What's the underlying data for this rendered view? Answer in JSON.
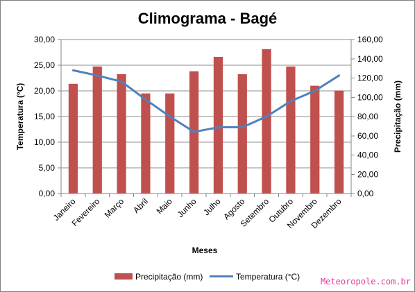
{
  "chart_data": {
    "type": "bar+line",
    "title": "Climograma - Bagé",
    "xlabel": "Meses",
    "ylabel_left": "Temperatura (°C)",
    "ylabel_right": "Precipitação (mm)",
    "categories": [
      "Janeiro",
      "Fevereiro",
      "Março",
      "Abril",
      "Maio",
      "Junho",
      "Julho",
      "Agosto",
      "Setembro",
      "Outubro",
      "Novembro",
      "Dezembro"
    ],
    "y_left": {
      "min": 0,
      "max": 30,
      "step": 5,
      "tick_labels": [
        "0,00",
        "5,00",
        "10,00",
        "15,00",
        "20,00",
        "25,00",
        "30,00"
      ]
    },
    "y_right": {
      "min": 0,
      "max": 160,
      "step": 20,
      "tick_labels": [
        "0,00",
        "20,00",
        "40,00",
        "60,00",
        "80,00",
        "100,00",
        "120,00",
        "140,00",
        "160,00"
      ]
    },
    "grid": true,
    "legend_position": "bottom",
    "series": [
      {
        "name": "Precipitação (mm)",
        "type": "bar",
        "axis": "right",
        "color": "#c0504d",
        "values": [
          114,
          132,
          124,
          104,
          104,
          127,
          142,
          124,
          150,
          132,
          112,
          107
        ]
      },
      {
        "name": "Temperatura (°C)",
        "type": "line",
        "axis": "left",
        "color": "#4f81bd",
        "values": [
          24.0,
          23.0,
          21.8,
          18.3,
          15.0,
          12.0,
          12.9,
          12.9,
          15.0,
          18.0,
          20.0,
          23.0
        ]
      }
    ]
  },
  "watermark": "Meteoropole.com.br"
}
